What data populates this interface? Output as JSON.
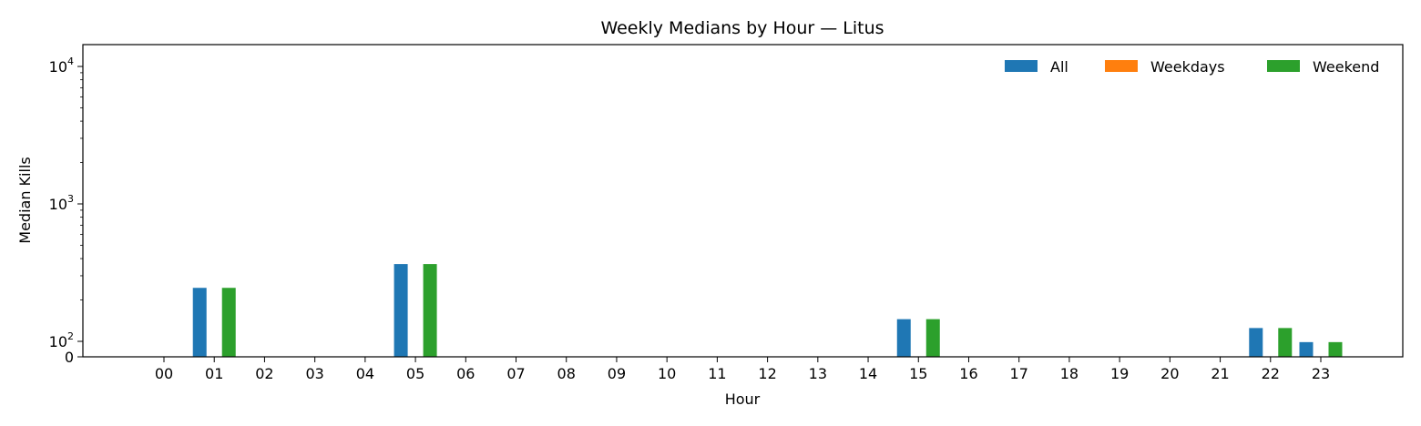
{
  "chart_data": {
    "type": "bar",
    "title": "Weekly Medians by Hour — Litus",
    "xlabel": "Hour",
    "ylabel": "Median Kills",
    "yscale": "symlog",
    "ylim": [
      0,
      14000
    ],
    "ytick_labels": [
      {
        "value": 0,
        "label": "0"
      },
      {
        "value": 100,
        "base": "10",
        "exp": "2"
      },
      {
        "value": 1000,
        "base": "10",
        "exp": "3"
      },
      {
        "value": 10000,
        "base": "10",
        "exp": "4"
      }
    ],
    "categories": [
      "00",
      "01",
      "02",
      "03",
      "04",
      "05",
      "06",
      "07",
      "08",
      "09",
      "10",
      "11",
      "12",
      "13",
      "14",
      "15",
      "16",
      "17",
      "18",
      "19",
      "20",
      "21",
      "22",
      "23"
    ],
    "series": [
      {
        "name": "All",
        "color": "#1f77b4",
        "values": [
          0,
          245,
          0,
          0,
          0,
          365,
          0,
          0,
          0,
          0,
          0,
          0,
          0,
          0,
          0,
          145,
          0,
          0,
          0,
          0,
          0,
          0,
          125,
          95
        ]
      },
      {
        "name": "Weekdays",
        "color": "#ff7f0e",
        "values": [
          0,
          0,
          0,
          0,
          0,
          0,
          0,
          0,
          0,
          0,
          0,
          0,
          0,
          0,
          0,
          0,
          0,
          0,
          0,
          0,
          0,
          0,
          0,
          0
        ]
      },
      {
        "name": "Weekend",
        "color": "#2ca02c",
        "values": [
          0,
          245,
          0,
          0,
          0,
          365,
          0,
          0,
          0,
          0,
          0,
          0,
          0,
          0,
          0,
          145,
          0,
          0,
          0,
          0,
          0,
          0,
          125,
          95
        ]
      }
    ],
    "legend_position": "top-right",
    "grid": false
  }
}
